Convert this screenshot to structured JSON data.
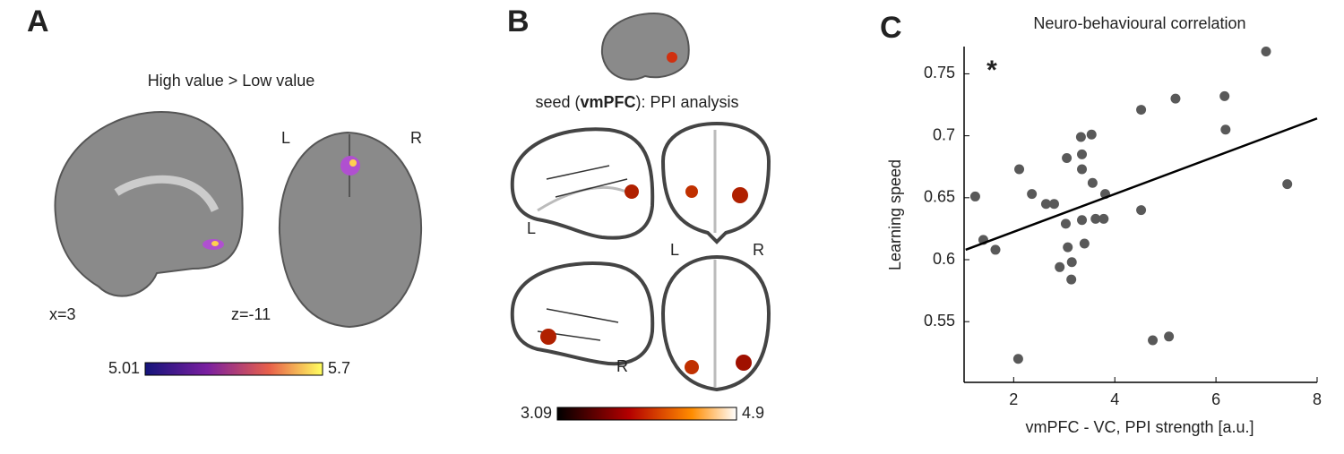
{
  "panel_a": {
    "label": "A",
    "title": "High value > Low value",
    "coords": [
      "x=3",
      "z=-11"
    ],
    "orientation": [
      "L",
      "R"
    ],
    "colorbar": {
      "min": 5.01,
      "max": 5.7
    }
  },
  "panel_b": {
    "label": "B",
    "title_parts": [
      "seed (",
      "vmPFC",
      "): PPI analysis"
    ],
    "view_labels": [
      "L",
      "L",
      "R",
      "R"
    ],
    "colorbar": {
      "min": 3.09,
      "max": 4.9
    }
  },
  "chart_data": {
    "type": "scatter",
    "panel_label": "C",
    "title": "Neuro-behavioural correlation",
    "x_label": "vmPFC - VC, PPI strength [a.u.]",
    "y_label": "Learning speed",
    "annotation": "*",
    "color": "#595959",
    "x": [
      1.24,
      1.4,
      1.64,
      2.11,
      2.09,
      2.36,
      2.64,
      2.8,
      2.91,
      3.07,
      3.03,
      3.05,
      3.15,
      3.14,
      3.33,
      3.35,
      3.35,
      3.35,
      3.4,
      3.54,
      3.56,
      3.62,
      3.81,
      3.78,
      4.52,
      4.52,
      4.75,
      5.07,
      5.2,
      6.17,
      6.19,
      6.99,
      7.41
    ],
    "y": [
      0.651,
      0.616,
      0.608,
      0.673,
      0.52,
      0.653,
      0.645,
      0.645,
      0.594,
      0.61,
      0.629,
      0.682,
      0.598,
      0.584,
      0.699,
      0.685,
      0.673,
      0.632,
      0.613,
      0.701,
      0.662,
      0.633,
      0.653,
      0.633,
      0.721,
      0.64,
      0.535,
      0.538,
      0.73,
      0.732,
      0.705,
      0.768,
      0.661
    ],
    "fit_line": {
      "x": [
        1.05,
        8
      ],
      "y": [
        0.608,
        0.714
      ]
    },
    "xlim": [
      1.02,
      8
    ],
    "ylim": [
      0.501,
      0.772
    ],
    "xticks": [
      2,
      4,
      6,
      8
    ],
    "yticks": [
      0.55,
      0.6,
      0.65,
      0.7,
      0.75
    ]
  }
}
